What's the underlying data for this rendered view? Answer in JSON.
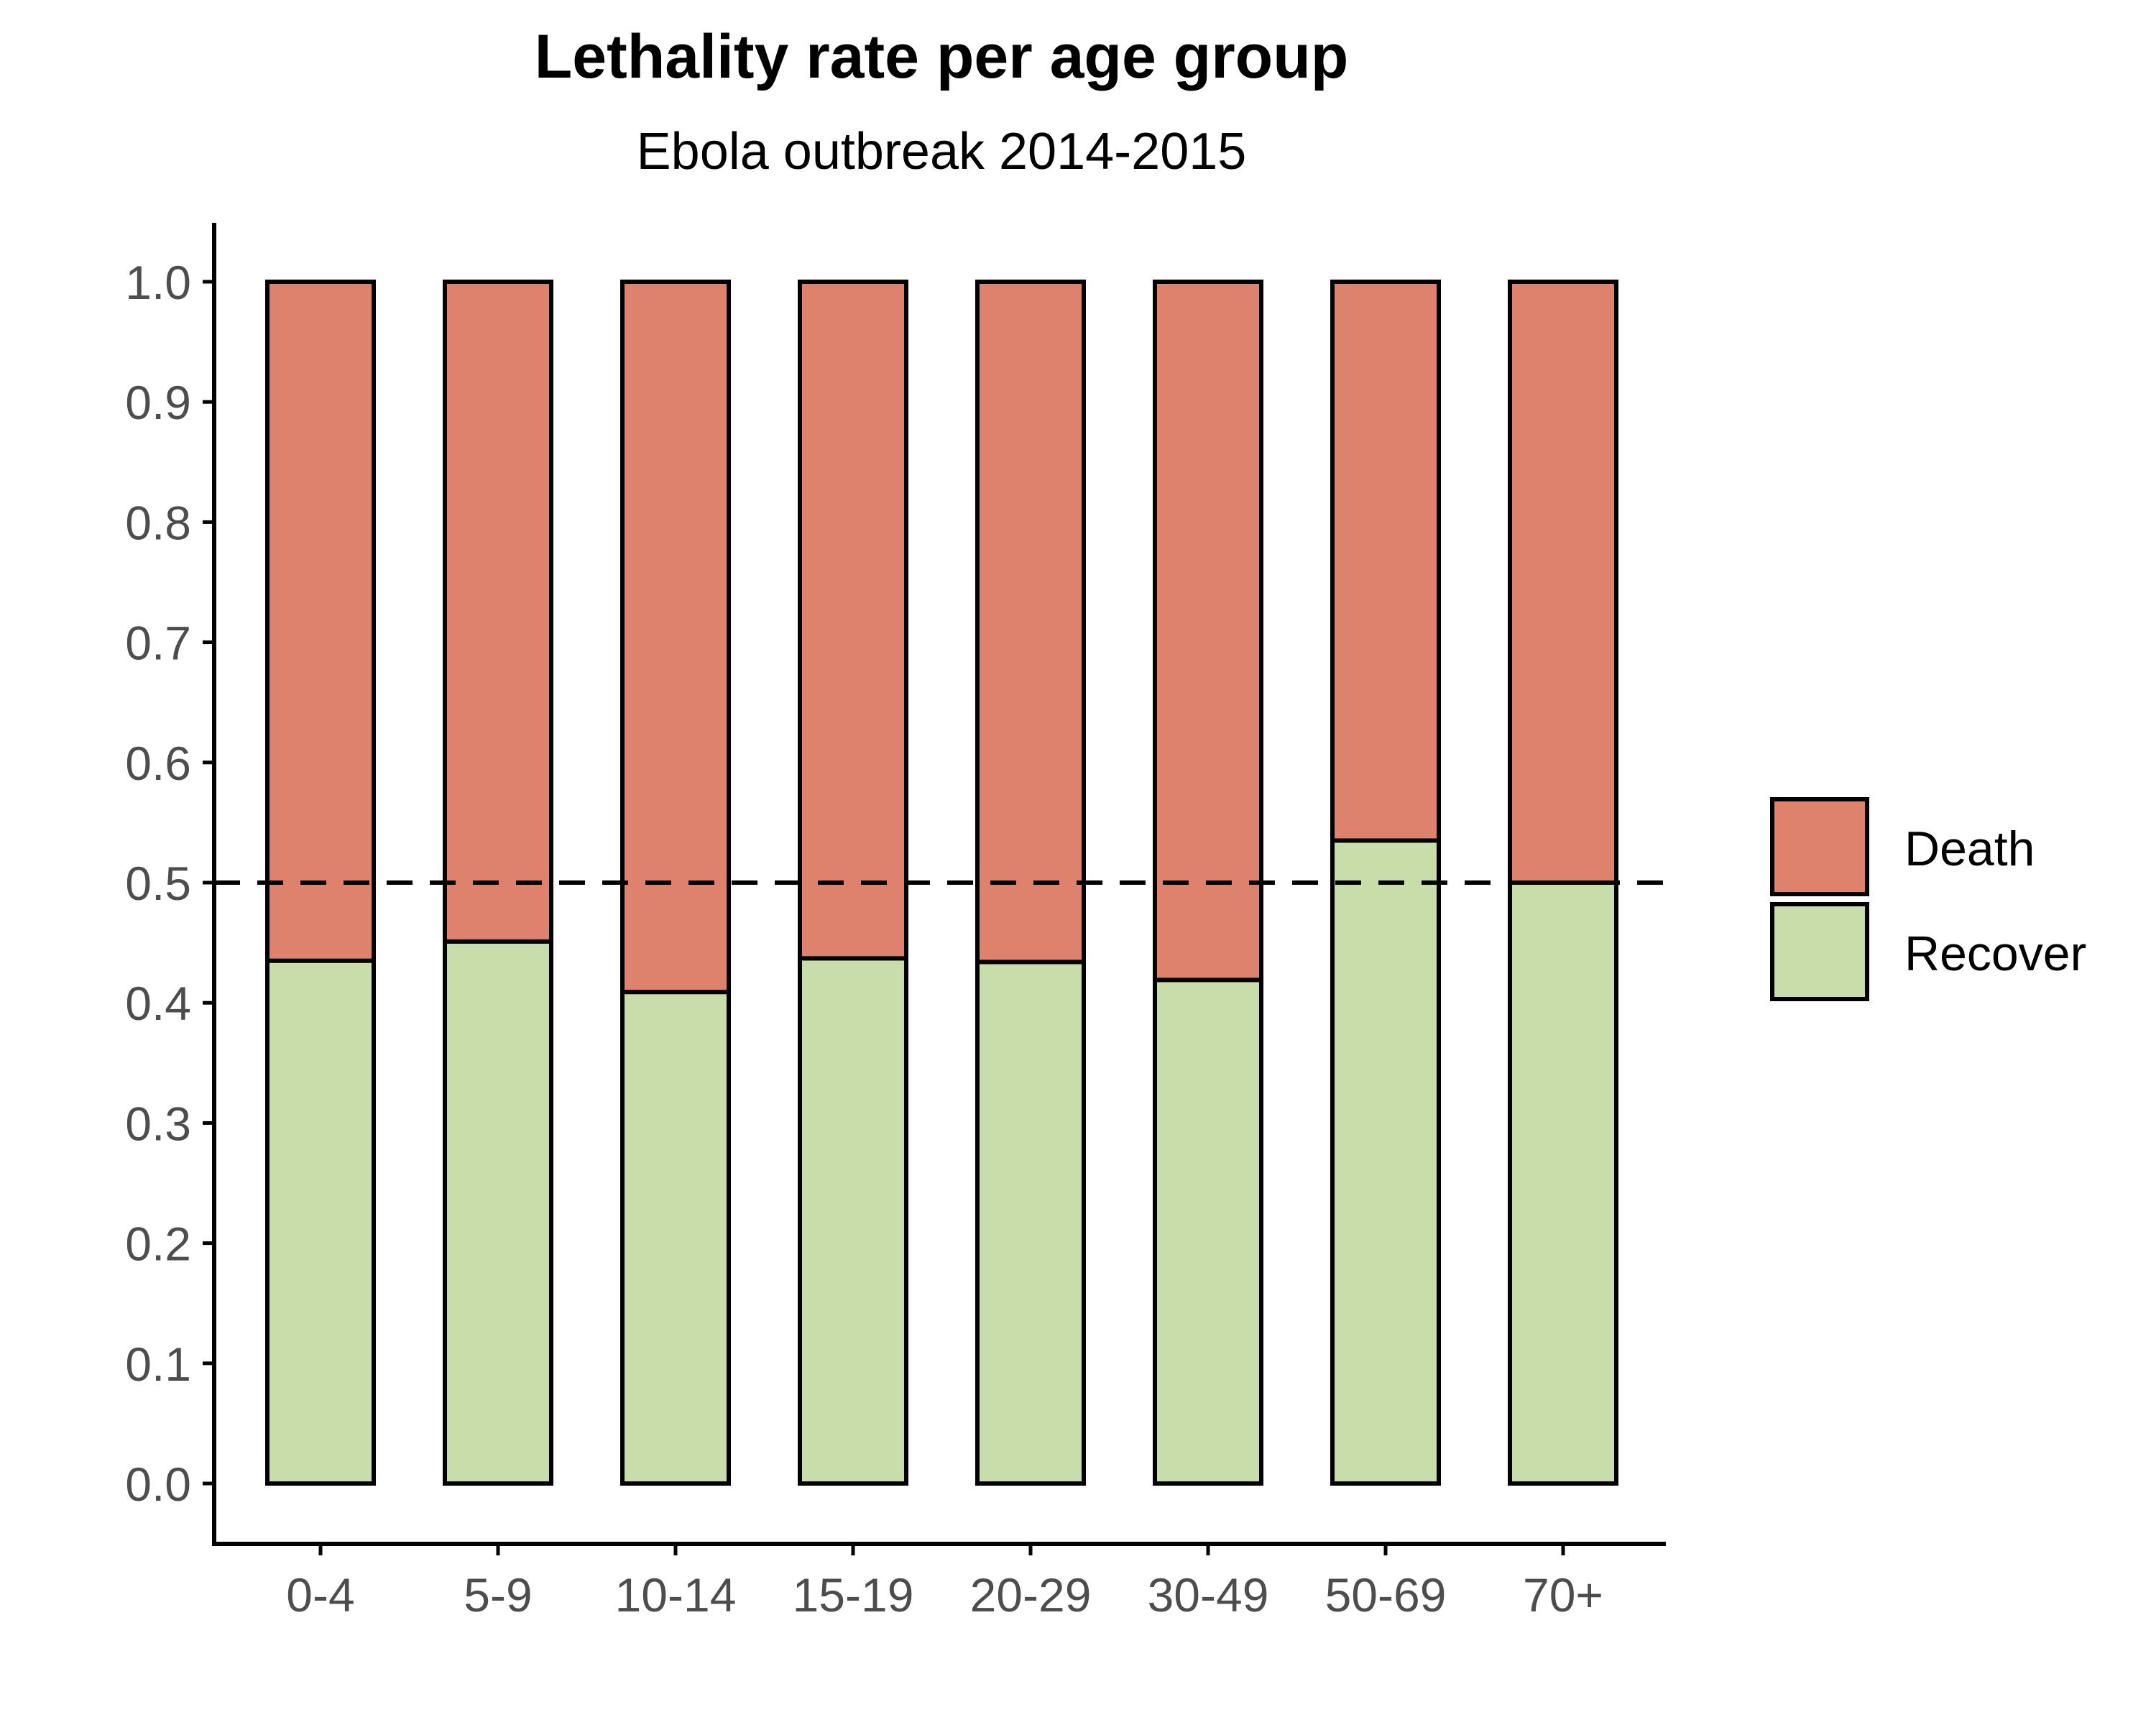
{
  "chart_data": {
    "type": "bar",
    "stacked": true,
    "title": "Lethality rate per age group",
    "subtitle": "Ebola outbreak 2014-2015",
    "xlabel": "",
    "ylabel": "",
    "categories": [
      "0-4",
      "5-9",
      "10-14",
      "15-19",
      "20-29",
      "30-49",
      "50-69",
      "70+"
    ],
    "series": [
      {
        "name": "Recover",
        "color": "#c9ddaa",
        "values": [
          0.435,
          0.451,
          0.409,
          0.437,
          0.434,
          0.419,
          0.535,
          0.5
        ]
      },
      {
        "name": "Death",
        "color": "#de826d",
        "values": [
          0.565,
          0.549,
          0.591,
          0.563,
          0.566,
          0.581,
          0.465,
          0.5
        ]
      }
    ],
    "ylim": [
      0,
      1.0
    ],
    "yticks": [
      0.0,
      0.1,
      0.2,
      0.3,
      0.4,
      0.5,
      0.6,
      0.7,
      0.8,
      0.9,
      1.0
    ],
    "ytick_labels": [
      "0.0",
      "0.1",
      "0.2",
      "0.3",
      "0.4",
      "0.5",
      "0.6",
      "0.7",
      "0.8",
      "0.9",
      "1.0"
    ],
    "reference_line": {
      "y": 0.5,
      "style": "dashed",
      "color": "#000000"
    },
    "legend": {
      "placement": "right",
      "entries": [
        "Death",
        "Recover"
      ]
    },
    "grid": false
  }
}
